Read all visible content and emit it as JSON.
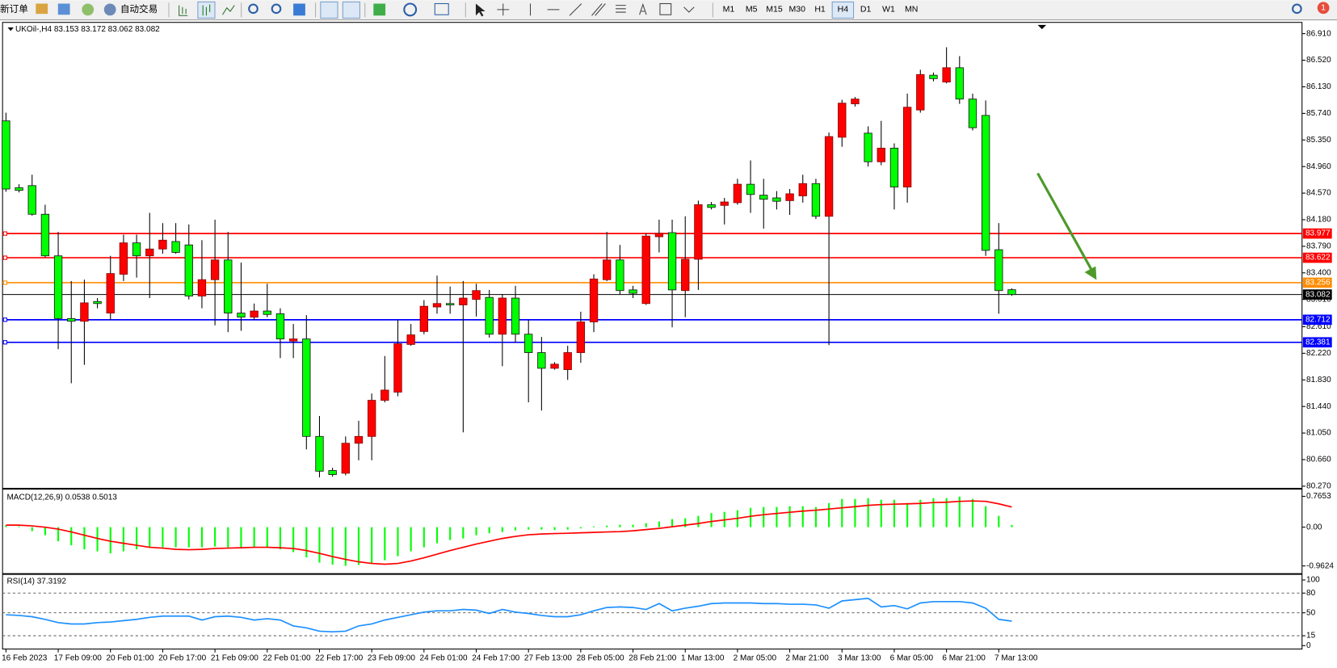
{
  "toolbar": {
    "new_order": "新订单",
    "auto_trading": "自动交易",
    "timeframes": [
      "M1",
      "M5",
      "M15",
      "M30",
      "H1",
      "H4",
      "D1",
      "W1",
      "MN"
    ],
    "active_timeframe": 5,
    "notifications": 1
  },
  "chart_data": [
    {
      "type": "candlestick",
      "title": "UKOil-,H4  83.153 83.172 83.062 83.082",
      "up_color": "#ff0000",
      "down_color": "#00ff00",
      "categories": [
        "16 Feb 2023",
        null,
        null,
        null,
        "17 Feb 09:00",
        null,
        null,
        null,
        "20 Feb 01:00",
        null,
        null,
        null,
        "20 Feb 17:00",
        null,
        null,
        null,
        "21 Feb 09:00",
        null,
        null,
        null,
        "22 Feb 01:00",
        null,
        null,
        null,
        "22 Feb 17:00",
        null,
        null,
        null,
        "23 Feb 09:00",
        null,
        null,
        null,
        "24 Feb 01:00",
        null,
        null,
        null,
        "24 Feb 17:00",
        null,
        null,
        null,
        "27 Feb 13:00",
        null,
        null,
        null,
        "28 Feb 05:00",
        null,
        null,
        null,
        "28 Feb 21:00",
        null,
        null,
        null,
        "1 Mar 13:00",
        null,
        null,
        null,
        "2 Mar 05:00",
        null,
        null,
        null,
        "2 Mar 21:00",
        null,
        null,
        null,
        "3 Mar 13:00",
        null,
        null,
        null,
        "6 Mar 05:00",
        null,
        null,
        null,
        "6 Mar 21:00",
        null,
        null,
        null,
        "7 Mar 13:00",
        null
      ],
      "open": [
        85.63,
        84.65,
        84.68,
        84.26,
        83.65,
        82.73,
        82.69,
        82.98,
        82.81,
        83.38,
        83.84,
        83.65,
        83.75,
        83.86,
        83.81,
        83.06,
        83.3,
        83.59,
        82.81,
        82.75,
        82.84,
        82.8,
        82.4,
        82.43,
        81.0,
        80.5,
        80.46,
        80.9,
        81.0,
        81.53,
        81.65,
        82.35,
        82.54,
        82.9,
        82.95,
        82.93,
        83.01,
        83.04,
        82.5,
        83.03,
        82.5,
        82.23,
        82.0,
        81.98,
        82.23,
        82.68,
        83.3,
        83.59,
        83.15,
        82.95,
        83.93,
        83.99,
        83.14,
        83.6,
        84.4,
        84.39,
        84.43,
        84.7,
        84.54,
        84.5,
        84.46,
        84.53,
        84.71,
        84.23,
        85.39,
        85.88,
        85.45,
        85.03,
        85.23,
        84.66,
        85.79,
        86.3,
        86.2,
        86.41,
        85.95,
        85.71,
        83.74,
        83.153
      ],
      "high": [
        85.75,
        84.7,
        84.84,
        84.4,
        84.0,
        83.28,
        83.3,
        83.03,
        83.65,
        83.96,
        83.96,
        84.28,
        84.13,
        84.13,
        84.11,
        83.88,
        84.18,
        84.0,
        83.55,
        82.95,
        83.24,
        82.88,
        82.65,
        82.78,
        81.3,
        80.54,
        81.0,
        81.23,
        81.63,
        82.18,
        82.71,
        82.65,
        83.0,
        83.36,
        83.2,
        83.28,
        83.24,
        83.15,
        83.09,
        83.21,
        82.71,
        82.46,
        82.09,
        82.33,
        82.83,
        83.38,
        84.0,
        83.81,
        83.21,
        83.98,
        84.18,
        84.18,
        84.23,
        84.46,
        84.44,
        84.5,
        84.78,
        85.05,
        84.78,
        84.6,
        84.63,
        84.84,
        84.78,
        85.46,
        85.94,
        85.98,
        85.55,
        85.63,
        85.3,
        86.03,
        86.38,
        86.34,
        86.71,
        86.58,
        86.03,
        85.93,
        84.13,
        83.172
      ],
      "low": [
        84.59,
        84.58,
        84.24,
        83.63,
        82.28,
        81.78,
        82.05,
        82.88,
        82.71,
        83.28,
        83.33,
        83.03,
        83.68,
        83.68,
        83.01,
        82.88,
        82.63,
        82.53,
        82.55,
        82.71,
        82.75,
        82.15,
        82.15,
        80.81,
        80.4,
        80.41,
        80.43,
        80.65,
        80.65,
        81.5,
        81.59,
        82.33,
        82.5,
        82.8,
        82.8,
        81.06,
        82.76,
        82.45,
        82.03,
        82.38,
        81.5,
        81.38,
        81.98,
        81.83,
        82.08,
        82.53,
        83.28,
        83.08,
        83.03,
        82.93,
        83.7,
        82.6,
        82.75,
        83.15,
        84.33,
        84.11,
        84.4,
        84.28,
        84.05,
        84.33,
        84.25,
        84.43,
        84.19,
        82.34,
        85.25,
        85.84,
        84.96,
        84.98,
        84.33,
        84.43,
        85.75,
        86.21,
        86.18,
        85.88,
        85.49,
        83.65,
        82.8,
        83.062
      ],
      "close": [
        84.63,
        84.61,
        84.26,
        83.65,
        82.73,
        82.69,
        82.96,
        82.95,
        83.39,
        83.84,
        83.65,
        83.75,
        83.88,
        83.7,
        83.06,
        83.3,
        83.59,
        82.81,
        82.75,
        82.84,
        82.79,
        82.43,
        82.43,
        81.0,
        80.49,
        80.44,
        80.9,
        81.0,
        81.53,
        81.68,
        82.36,
        82.49,
        82.91,
        82.95,
        82.93,
        83.03,
        83.14,
        82.5,
        83.03,
        82.5,
        82.23,
        82.0,
        82.06,
        82.23,
        82.68,
        83.31,
        83.59,
        83.14,
        83.1,
        83.94,
        83.98,
        83.15,
        83.6,
        84.4,
        84.36,
        84.44,
        84.7,
        84.55,
        84.48,
        84.45,
        84.56,
        84.71,
        84.23,
        85.4,
        85.89,
        85.95,
        85.03,
        85.23,
        84.66,
        85.83,
        86.31,
        86.25,
        86.41,
        85.95,
        85.53,
        83.73,
        83.14,
        83.082
      ],
      "ylim": [
        80.245,
        87.05
      ],
      "yticks": [
        {
          "value": 86.91,
          "label": "86.910"
        },
        {
          "value": 86.52,
          "label": "86.520"
        },
        {
          "value": 86.13,
          "label": "86.130"
        },
        {
          "value": 85.74,
          "label": "85.740"
        },
        {
          "value": 85.35,
          "label": "85.350"
        },
        {
          "value": 84.96,
          "label": "84.960"
        },
        {
          "value": 84.57,
          "label": "84.570"
        },
        {
          "value": 84.18,
          "label": "84.180"
        },
        {
          "value": 83.79,
          "label": "83.790"
        },
        {
          "value": 83.4,
          "label": "83.400"
        },
        {
          "value": 83.01,
          "label": "83.010"
        },
        {
          "value": 82.61,
          "label": "82.610"
        },
        {
          "value": 82.22,
          "label": "82.220"
        },
        {
          "value": 81.83,
          "label": "81.830"
        },
        {
          "value": 81.44,
          "label": "81.440"
        },
        {
          "value": 81.05,
          "label": "81.050"
        },
        {
          "value": 80.66,
          "label": "80.660"
        },
        {
          "value": 80.27,
          "label": "80.270"
        }
      ],
      "levels": [
        {
          "value": 83.977,
          "color": "#ff0000"
        },
        {
          "value": 83.622,
          "color": "#ff0000"
        },
        {
          "value": 83.256,
          "color": "#ff8c00"
        },
        {
          "value": 83.082,
          "color": "#000000"
        },
        {
          "value": 82.712,
          "color": "#0000ff"
        },
        {
          "value": 82.381,
          "color": "#0000ff"
        }
      ]
    },
    {
      "type": "macd",
      "title": "MACD(12,26,9) 0.0538 0.5013",
      "series": [
        {
          "color": "#00ff00",
          "values": [
            0.05,
            0.02,
            -0.1,
            -0.2,
            -0.35,
            -0.45,
            -0.55,
            -0.6,
            -0.65,
            -0.6,
            -0.55,
            -0.5,
            -0.5,
            -0.5,
            -0.5,
            -0.5,
            -0.48,
            -0.5,
            -0.52,
            -0.5,
            -0.5,
            -0.55,
            -0.62,
            -0.75,
            -0.88,
            -0.93,
            -0.96,
            -0.94,
            -0.9,
            -0.82,
            -0.72,
            -0.6,
            -0.5,
            -0.4,
            -0.32,
            -0.28,
            -0.2,
            -0.15,
            -0.12,
            -0.08,
            -0.06,
            -0.06,
            -0.07,
            -0.06,
            -0.03,
            0.0,
            0.04,
            0.06,
            0.06,
            0.1,
            0.14,
            0.2,
            0.22,
            0.28,
            0.35,
            0.38,
            0.42,
            0.48,
            0.5,
            0.5,
            0.52,
            0.52,
            0.5,
            0.6,
            0.7,
            0.7,
            0.72,
            0.68,
            0.68,
            0.6,
            0.68,
            0.72,
            0.72,
            0.76,
            0.7,
            0.52,
            0.28,
            0.0538
          ]
        },
        {
          "color": "#ff0000",
          "values": [
            0.05,
            0.05,
            0.03,
            0.0,
            -0.05,
            -0.12,
            -0.2,
            -0.28,
            -0.35,
            -0.4,
            -0.45,
            -0.5,
            -0.52,
            -0.55,
            -0.56,
            -0.55,
            -0.53,
            -0.52,
            -0.51,
            -0.5,
            -0.5,
            -0.51,
            -0.53,
            -0.58,
            -0.65,
            -0.73,
            -0.8,
            -0.86,
            -0.9,
            -0.92,
            -0.9,
            -0.84,
            -0.76,
            -0.67,
            -0.58,
            -0.5,
            -0.42,
            -0.35,
            -0.28,
            -0.23,
            -0.19,
            -0.17,
            -0.16,
            -0.15,
            -0.14,
            -0.13,
            -0.12,
            -0.11,
            -0.09,
            -0.06,
            -0.03,
            0.01,
            0.05,
            0.09,
            0.14,
            0.18,
            0.22,
            0.27,
            0.31,
            0.34,
            0.37,
            0.4,
            0.42,
            0.45,
            0.48,
            0.51,
            0.54,
            0.56,
            0.57,
            0.58,
            0.59,
            0.61,
            0.62,
            0.64,
            0.65,
            0.64,
            0.58,
            0.5013
          ]
        }
      ],
      "ylim": [
        -1.12,
        0.89
      ],
      "yticks": [
        0.7653,
        {
          "value": 0,
          "label": "0.00"
        },
        -0.9624
      ]
    },
    {
      "type": "line",
      "title": "RSI(14) 37.3192",
      "series": [
        {
          "color": "#1e90ff",
          "values": [
            47,
            46,
            44,
            40,
            35,
            33,
            33,
            35,
            36,
            38,
            40,
            43,
            45,
            45,
            45,
            39,
            44,
            45,
            43,
            39,
            41,
            39,
            30,
            27,
            22,
            21,
            22,
            30,
            33,
            39,
            43,
            47,
            51,
            53,
            53,
            55,
            54,
            49,
            55,
            51,
            49,
            46,
            44,
            44,
            47,
            53,
            58,
            59,
            58,
            55,
            64,
            53,
            57,
            60,
            64,
            65,
            65,
            65,
            64,
            64,
            63,
            63,
            62,
            57,
            68,
            70,
            72,
            59,
            61,
            56,
            65,
            67,
            67,
            67,
            65,
            57,
            40,
            37.3192
          ]
        }
      ],
      "ylim": [
        0,
        100
      ],
      "yticks": [
        100,
        80,
        50,
        15,
        0
      ],
      "levels": [
        80,
        50,
        15
      ]
    }
  ]
}
